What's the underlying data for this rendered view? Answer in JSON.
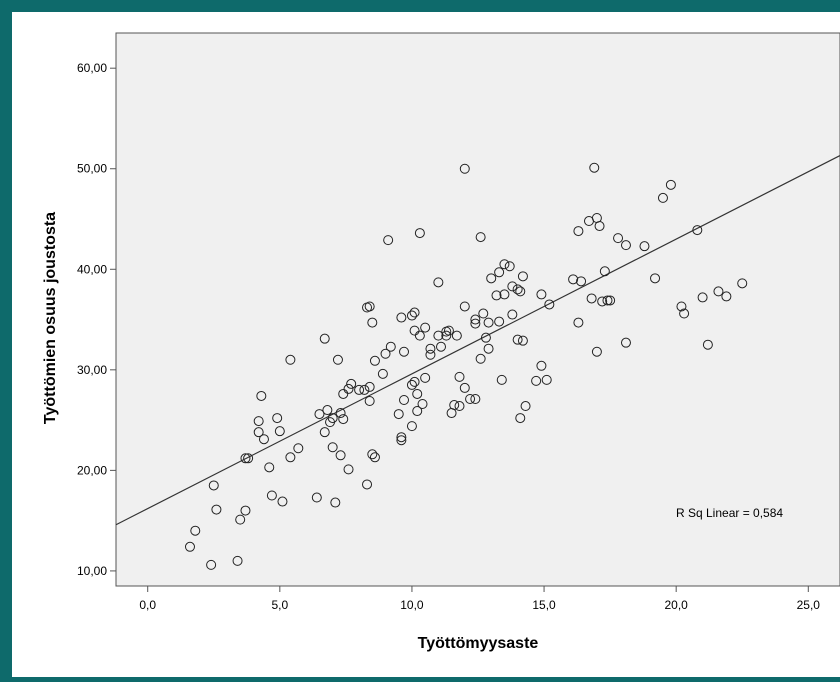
{
  "chart_data": {
    "type": "scatter",
    "title": "",
    "xlabel": "Työttömyysaste",
    "ylabel": "Työttömien osuus joustosta",
    "xlim": [
      -1.2,
      26.2
    ],
    "ylim": [
      8.5,
      63.5
    ],
    "x_ticks": [
      0,
      5,
      10,
      15,
      20,
      25
    ],
    "x_tick_labels": [
      "0,0",
      "5,0",
      "10,0",
      "15,0",
      "20,0",
      "25,0"
    ],
    "y_ticks": [
      10,
      20,
      30,
      40,
      50,
      60
    ],
    "y_tick_labels": [
      "10,00",
      "20,00",
      "30,00",
      "40,00",
      "50,00",
      "60,00"
    ],
    "grid": false,
    "fit_line": {
      "intercept": 16.2,
      "slope": 1.34
    },
    "annotation": "R Sq Linear = 0,584",
    "points": [
      {
        "x": 1.6,
        "y": 12.4
      },
      {
        "x": 1.8,
        "y": 14.0
      },
      {
        "x": 2.4,
        "y": 10.6
      },
      {
        "x": 2.5,
        "y": 18.5
      },
      {
        "x": 2.6,
        "y": 16.1
      },
      {
        "x": 3.4,
        "y": 11.0
      },
      {
        "x": 3.5,
        "y": 15.1
      },
      {
        "x": 3.7,
        "y": 16.0
      },
      {
        "x": 3.7,
        "y": 21.2
      },
      {
        "x": 3.8,
        "y": 21.2
      },
      {
        "x": 4.2,
        "y": 24.9
      },
      {
        "x": 4.2,
        "y": 23.8
      },
      {
        "x": 4.3,
        "y": 27.4
      },
      {
        "x": 4.4,
        "y": 23.1
      },
      {
        "x": 4.6,
        "y": 20.3
      },
      {
        "x": 4.7,
        "y": 17.5
      },
      {
        "x": 4.9,
        "y": 25.2
      },
      {
        "x": 5.0,
        "y": 23.9
      },
      {
        "x": 5.1,
        "y": 16.9
      },
      {
        "x": 5.4,
        "y": 31.0
      },
      {
        "x": 5.4,
        "y": 21.3
      },
      {
        "x": 5.7,
        "y": 22.2
      },
      {
        "x": 6.4,
        "y": 17.3
      },
      {
        "x": 6.5,
        "y": 25.6
      },
      {
        "x": 6.7,
        "y": 23.8
      },
      {
        "x": 6.7,
        "y": 33.1
      },
      {
        "x": 6.8,
        "y": 26.0
      },
      {
        "x": 6.9,
        "y": 24.8
      },
      {
        "x": 7.0,
        "y": 25.2
      },
      {
        "x": 7.0,
        "y": 22.3
      },
      {
        "x": 7.1,
        "y": 16.8
      },
      {
        "x": 7.2,
        "y": 31.0
      },
      {
        "x": 7.3,
        "y": 25.7
      },
      {
        "x": 7.3,
        "y": 21.5
      },
      {
        "x": 7.4,
        "y": 27.6
      },
      {
        "x": 7.4,
        "y": 25.1
      },
      {
        "x": 7.6,
        "y": 28.1
      },
      {
        "x": 7.6,
        "y": 20.1
      },
      {
        "x": 7.7,
        "y": 28.6
      },
      {
        "x": 8.0,
        "y": 28.0
      },
      {
        "x": 8.2,
        "y": 28.0
      },
      {
        "x": 8.3,
        "y": 18.6
      },
      {
        "x": 8.3,
        "y": 36.2
      },
      {
        "x": 8.4,
        "y": 26.9
      },
      {
        "x": 8.4,
        "y": 28.3
      },
      {
        "x": 8.4,
        "y": 36.3
      },
      {
        "x": 8.5,
        "y": 34.7
      },
      {
        "x": 8.5,
        "y": 21.6
      },
      {
        "x": 8.6,
        "y": 21.3
      },
      {
        "x": 8.6,
        "y": 30.9
      },
      {
        "x": 8.9,
        "y": 29.6
      },
      {
        "x": 9.0,
        "y": 31.6
      },
      {
        "x": 9.1,
        "y": 42.9
      },
      {
        "x": 9.2,
        "y": 32.3
      },
      {
        "x": 9.5,
        "y": 25.6
      },
      {
        "x": 9.6,
        "y": 23.3
      },
      {
        "x": 9.6,
        "y": 23.0
      },
      {
        "x": 9.6,
        "y": 35.2
      },
      {
        "x": 9.7,
        "y": 31.8
      },
      {
        "x": 9.7,
        "y": 27.0
      },
      {
        "x": 10.0,
        "y": 24.4
      },
      {
        "x": 10.0,
        "y": 28.5
      },
      {
        "x": 10.0,
        "y": 35.4
      },
      {
        "x": 10.1,
        "y": 35.7
      },
      {
        "x": 10.1,
        "y": 28.8
      },
      {
        "x": 10.1,
        "y": 33.9
      },
      {
        "x": 10.2,
        "y": 27.6
      },
      {
        "x": 10.2,
        "y": 25.9
      },
      {
        "x": 10.3,
        "y": 43.6
      },
      {
        "x": 10.3,
        "y": 33.4
      },
      {
        "x": 10.4,
        "y": 26.6
      },
      {
        "x": 10.5,
        "y": 34.2
      },
      {
        "x": 10.5,
        "y": 29.2
      },
      {
        "x": 10.7,
        "y": 31.5
      },
      {
        "x": 10.7,
        "y": 32.1
      },
      {
        "x": 11.0,
        "y": 33.4
      },
      {
        "x": 11.0,
        "y": 38.7
      },
      {
        "x": 11.1,
        "y": 32.3
      },
      {
        "x": 11.3,
        "y": 33.8
      },
      {
        "x": 11.3,
        "y": 33.4
      },
      {
        "x": 11.4,
        "y": 33.9
      },
      {
        "x": 11.5,
        "y": 25.7
      },
      {
        "x": 11.6,
        "y": 26.5
      },
      {
        "x": 11.7,
        "y": 33.4
      },
      {
        "x": 11.8,
        "y": 29.3
      },
      {
        "x": 11.8,
        "y": 26.4
      },
      {
        "x": 12.0,
        "y": 50.0
      },
      {
        "x": 12.0,
        "y": 36.3
      },
      {
        "x": 12.0,
        "y": 28.2
      },
      {
        "x": 12.2,
        "y": 27.1
      },
      {
        "x": 12.4,
        "y": 35.0
      },
      {
        "x": 12.4,
        "y": 34.6
      },
      {
        "x": 12.4,
        "y": 27.1
      },
      {
        "x": 12.6,
        "y": 43.2
      },
      {
        "x": 12.6,
        "y": 31.1
      },
      {
        "x": 12.7,
        "y": 35.6
      },
      {
        "x": 12.8,
        "y": 33.2
      },
      {
        "x": 12.9,
        "y": 34.7
      },
      {
        "x": 12.9,
        "y": 32.1
      },
      {
        "x": 13.0,
        "y": 39.1
      },
      {
        "x": 13.2,
        "y": 37.4
      },
      {
        "x": 13.3,
        "y": 39.7
      },
      {
        "x": 13.3,
        "y": 34.8
      },
      {
        "x": 13.4,
        "y": 29.0
      },
      {
        "x": 13.5,
        "y": 40.5
      },
      {
        "x": 13.5,
        "y": 37.5
      },
      {
        "x": 13.7,
        "y": 40.3
      },
      {
        "x": 13.8,
        "y": 38.3
      },
      {
        "x": 13.8,
        "y": 35.5
      },
      {
        "x": 14.0,
        "y": 38.0
      },
      {
        "x": 14.0,
        "y": 33.0
      },
      {
        "x": 14.1,
        "y": 25.2
      },
      {
        "x": 14.1,
        "y": 37.8
      },
      {
        "x": 14.2,
        "y": 32.9
      },
      {
        "x": 14.2,
        "y": 39.3
      },
      {
        "x": 14.3,
        "y": 26.4
      },
      {
        "x": 14.7,
        "y": 28.9
      },
      {
        "x": 14.9,
        "y": 37.5
      },
      {
        "x": 14.9,
        "y": 30.4
      },
      {
        "x": 15.1,
        "y": 29.0
      },
      {
        "x": 15.2,
        "y": 36.5
      },
      {
        "x": 16.1,
        "y": 39.0
      },
      {
        "x": 16.3,
        "y": 43.8
      },
      {
        "x": 16.3,
        "y": 34.7
      },
      {
        "x": 16.4,
        "y": 38.8
      },
      {
        "x": 16.7,
        "y": 44.8
      },
      {
        "x": 16.8,
        "y": 37.1
      },
      {
        "x": 16.9,
        "y": 50.1
      },
      {
        "x": 17.0,
        "y": 45.1
      },
      {
        "x": 17.0,
        "y": 31.8
      },
      {
        "x": 17.1,
        "y": 44.3
      },
      {
        "x": 17.2,
        "y": 36.8
      },
      {
        "x": 17.3,
        "y": 39.8
      },
      {
        "x": 17.4,
        "y": 36.9
      },
      {
        "x": 17.5,
        "y": 36.9
      },
      {
        "x": 17.8,
        "y": 43.1
      },
      {
        "x": 18.1,
        "y": 42.4
      },
      {
        "x": 18.1,
        "y": 32.7
      },
      {
        "x": 18.8,
        "y": 42.3
      },
      {
        "x": 19.2,
        "y": 39.1
      },
      {
        "x": 19.5,
        "y": 47.1
      },
      {
        "x": 19.8,
        "y": 48.4
      },
      {
        "x": 20.2,
        "y": 36.3
      },
      {
        "x": 20.3,
        "y": 35.6
      },
      {
        "x": 20.8,
        "y": 43.9
      },
      {
        "x": 21.0,
        "y": 37.2
      },
      {
        "x": 21.2,
        "y": 32.5
      },
      {
        "x": 21.6,
        "y": 37.8
      },
      {
        "x": 21.9,
        "y": 37.3
      },
      {
        "x": 22.5,
        "y": 38.6
      }
    ]
  }
}
